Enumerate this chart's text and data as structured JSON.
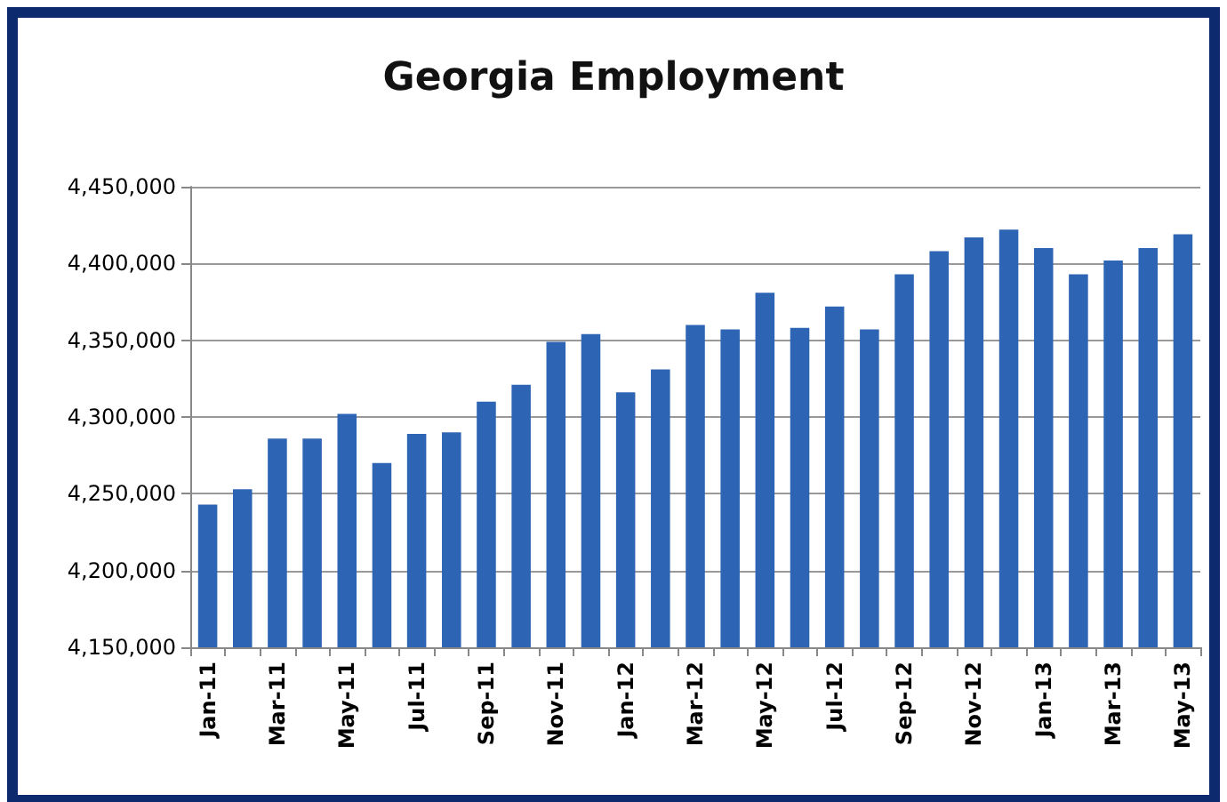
{
  "chart_data": {
    "type": "bar",
    "title": "Georgia Employment",
    "categories": [
      "Jan-11",
      null,
      "Mar-11",
      null,
      "May-11",
      null,
      "Jul-11",
      null,
      "Sep-11",
      null,
      "Nov-11",
      null,
      "Jan-12",
      null,
      "Mar-12",
      null,
      "May-12",
      null,
      "Jul-12",
      null,
      "Sep-12",
      null,
      "Nov-12",
      null,
      "Jan-13",
      null,
      "Mar-13",
      null,
      "May-13"
    ],
    "values": [
      4243000,
      4253000,
      4286000,
      4286000,
      4302000,
      4270000,
      4289000,
      4290000,
      4310000,
      4321000,
      4349000,
      4354000,
      4316000,
      4331000,
      4360000,
      4357000,
      4381000,
      4358000,
      4372000,
      4357000,
      4393000,
      4408000,
      4417000,
      4422000,
      4410000,
      4393000,
      4402000,
      4410000,
      4419000
    ],
    "color": "#2e64b4",
    "ylim": [
      4150000,
      4450000
    ],
    "yticks": [
      {
        "value": 4150000,
        "label": "4,150,000"
      },
      {
        "value": 4200000,
        "label": "4,200,000"
      },
      {
        "value": 4250000,
        "label": "4,250,000"
      },
      {
        "value": 4300000,
        "label": "4,300,000"
      },
      {
        "value": 4350000,
        "label": "4,350,000"
      },
      {
        "value": 4400000,
        "label": "4,400,000"
      },
      {
        "value": 4450000,
        "label": "4,450,000"
      }
    ],
    "grid": "y"
  }
}
